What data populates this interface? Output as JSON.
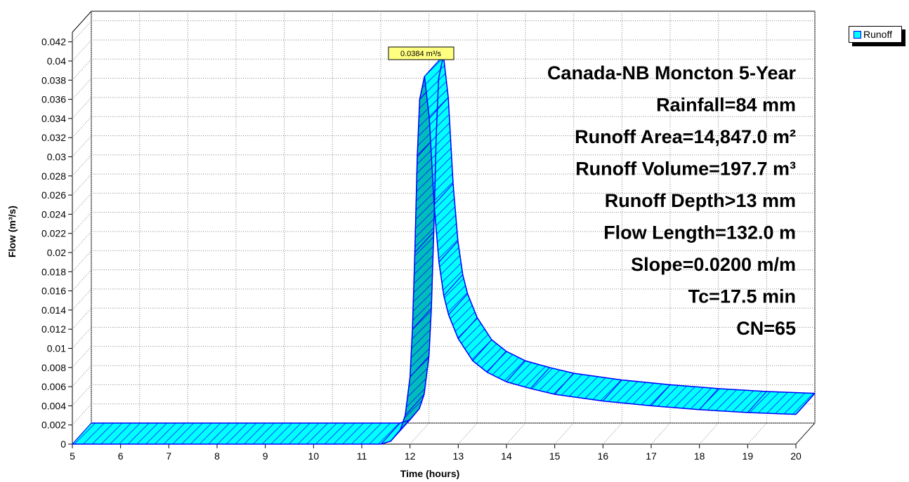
{
  "chart_data": {
    "type": "area",
    "xlabel": "Time  (hours)",
    "ylabel": "Flow  (m³/s)",
    "xlim": [
      5,
      20
    ],
    "ylim": [
      0,
      0.043
    ],
    "x_ticks": [
      "5",
      "6",
      "7",
      "8",
      "9",
      "10",
      "11",
      "12",
      "13",
      "14",
      "15",
      "16",
      "17",
      "18",
      "19",
      "20"
    ],
    "y_ticks": [
      "0",
      "0.002",
      "0.004",
      "0.006",
      "0.008",
      "0.01",
      "0.012",
      "0.014",
      "0.016",
      "0.018",
      "0.02",
      "0.022",
      "0.024",
      "0.026",
      "0.028",
      "0.03",
      "0.032",
      "0.034",
      "0.036",
      "0.038",
      "0.04",
      "0.042"
    ],
    "grid": true,
    "legend_position": "top-right",
    "series": [
      {
        "name": "Runoff",
        "color": "#00ffff",
        "edge_color": "#0000ff",
        "x": [
          5.0,
          11.4,
          11.6,
          11.8,
          11.9,
          12.0,
          12.05,
          12.1,
          12.15,
          12.2,
          12.3,
          12.4,
          12.5,
          12.6,
          12.7,
          12.8,
          13.0,
          13.3,
          13.6,
          14.0,
          14.5,
          15.0,
          16.0,
          17.0,
          18.0,
          19.0,
          20.0
        ],
        "values": [
          0.0,
          0.0,
          0.0003,
          0.0015,
          0.003,
          0.007,
          0.012,
          0.02,
          0.03,
          0.036,
          0.0384,
          0.034,
          0.025,
          0.019,
          0.0155,
          0.0135,
          0.011,
          0.0087,
          0.0075,
          0.0065,
          0.0058,
          0.0052,
          0.0045,
          0.004,
          0.0036,
          0.0033,
          0.0031
        ]
      }
    ],
    "peak_label": {
      "text": "0.0384 m³/s",
      "x": 12.3,
      "y": 0.0384
    },
    "annotations": [
      "Canada-NB Moncton 5-Year",
      "Rainfall=84 mm",
      "Runoff Area=14,847.0 m²",
      "Runoff Volume=197.7 m³",
      "Runoff Depth>13 mm",
      "Flow Length=132.0 m",
      "Slope=0.0200 m/m",
      "Tc=17.5 min",
      "CN=65"
    ]
  }
}
